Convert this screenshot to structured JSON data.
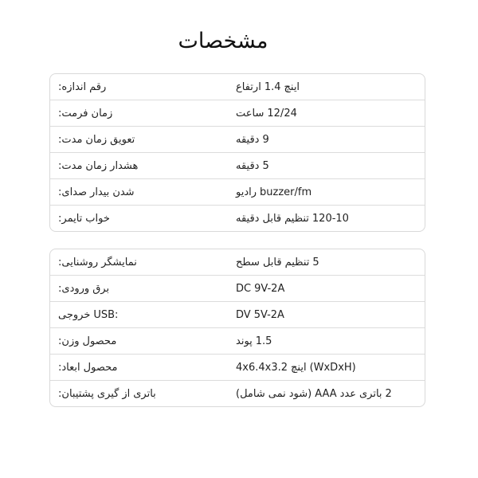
{
  "title": "مشخصات",
  "tables": [
    {
      "rows": [
        {
          "label": ":اندازه رقم",
          "value": "ارتفاع 1.4 اینچ"
        },
        {
          "label": ":فرمت زمان",
          "value": "ساعت 12/24"
        },
        {
          "label": ":مدت زمان تعویق",
          "value": "دقیقه 9"
        },
        {
          "label": ":مدت زمان هشدار",
          "value": "دقیقه 5"
        },
        {
          "label": ":صدای بیدار شدن",
          "value": "رادیو buzzer/fm"
        },
        {
          "label": ":تایمر خواب",
          "value": "دقیقه قابل تنظیم 120-10"
        }
      ]
    },
    {
      "rows": [
        {
          "label": ":روشنایی نمایشگر",
          "value": "سطح قابل تنظیم 5"
        },
        {
          "label": ":ورودی برق",
          "value": "DC 9V-2A"
        },
        {
          "label": "خروجی USB:",
          "value": "DV 5V-2A"
        },
        {
          "label": ":وزن محصول",
          "value": "پوند 1.5"
        },
        {
          "label": ":ابعاد محصول",
          "value": "4x6.4x3.2 اینچ (WxDxH)"
        },
        {
          "label": ":پشتیبان گیری از باتری",
          "value": "(شامل نمی شود) AAA عدد باتری 2"
        }
      ]
    }
  ]
}
